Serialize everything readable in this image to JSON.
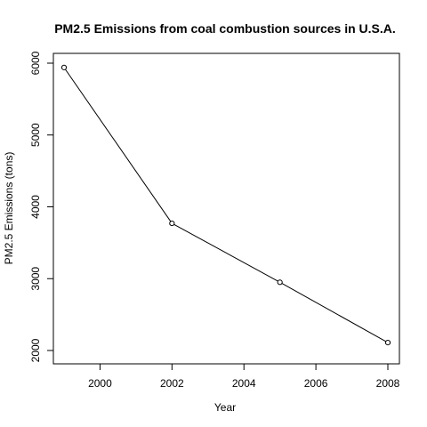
{
  "chart_data": {
    "type": "line",
    "title": "PM2.5 Emissions from coal combustion sources in U.S.A.",
    "xlabel": "Year",
    "ylabel": "PM2.5 Emissions (tons)",
    "x": [
      1999,
      2002,
      2005,
      2008
    ],
    "series": [
      {
        "values": [
          5940,
          3770,
          2950,
          2110
        ]
      }
    ],
    "xlim": [
      1999,
      2008
    ],
    "ylim": [
      2000,
      6000
    ],
    "xticks": [
      2000,
      2002,
      2004,
      2006,
      2008
    ],
    "yticks": [
      2000,
      3000,
      4000,
      5000,
      6000
    ],
    "markers": "open-circle",
    "grid": false,
    "legend": false
  }
}
